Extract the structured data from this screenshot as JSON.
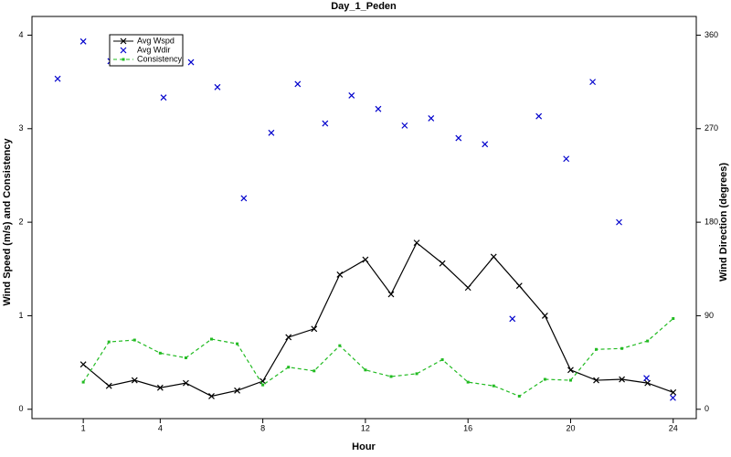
{
  "chart_data": {
    "type": "line",
    "title": "Day_1_Peden",
    "xlabel": "Hour",
    "ylabel": "Wind Speed (m/s) and Consistency",
    "y2label": "Wind Direction (degrees)",
    "xlim": [
      -1,
      24.9
    ],
    "xticks": [
      1,
      4,
      8,
      12,
      16,
      20,
      24
    ],
    "ylim": [
      -0.1,
      4.2
    ],
    "yticks": [
      0,
      1,
      2,
      3,
      4
    ],
    "y2lim": [
      -9,
      378
    ],
    "y2ticks": [
      0,
      90,
      180,
      270,
      360
    ],
    "legend": "upper left",
    "grid": false,
    "series": [
      {
        "name": "Avg Wspd",
        "color": "#000000",
        "line": "solid",
        "marker": "x",
        "x": [
          1,
          2,
          3,
          4,
          5,
          6,
          7,
          8,
          9,
          10,
          11,
          12,
          13,
          14,
          15,
          16,
          17,
          18,
          19,
          20,
          21,
          22,
          23,
          24
        ],
        "values": [
          0.48,
          0.25,
          0.31,
          0.23,
          0.28,
          0.14,
          0.2,
          0.3,
          0.77,
          0.86,
          1.44,
          1.6,
          1.23,
          1.78,
          1.56,
          1.3,
          1.63,
          1.32,
          1.0,
          0.42,
          0.31,
          0.32,
          0.28,
          0.18
        ]
      },
      {
        "name": "Avg Wdir",
        "color": "#0000cc",
        "line": "none",
        "marker": "x",
        "axis": "y2",
        "x": [
          0.0,
          1.0,
          2.06,
          4.13,
          5.2,
          6.23,
          7.26,
          8.33,
          9.36,
          10.43,
          11.46,
          12.5,
          13.53,
          14.56,
          15.63,
          16.66,
          17.73,
          18.76,
          19.83,
          20.86,
          21.89,
          22.96,
          23.99
        ],
        "values": [
          318,
          354,
          335,
          300,
          334,
          310,
          203,
          266,
          313,
          275,
          302,
          289,
          273,
          280,
          261,
          255,
          87,
          282,
          241,
          315,
          180,
          30,
          11
        ]
      },
      {
        "name": "Consistency",
        "color": "#22bb22",
        "line": "dashed",
        "marker": "dot",
        "x": [
          1,
          2,
          3,
          4,
          5,
          6,
          7,
          8,
          9,
          10,
          11,
          12,
          13,
          14,
          15,
          16,
          17,
          18,
          19,
          20,
          21,
          22,
          23,
          24
        ],
        "values": [
          0.29,
          0.72,
          0.74,
          0.6,
          0.55,
          0.75,
          0.7,
          0.26,
          0.45,
          0.41,
          0.68,
          0.42,
          0.35,
          0.38,
          0.53,
          0.29,
          0.25,
          0.14,
          0.32,
          0.31,
          0.64,
          0.65,
          0.73,
          0.97
        ]
      }
    ]
  }
}
